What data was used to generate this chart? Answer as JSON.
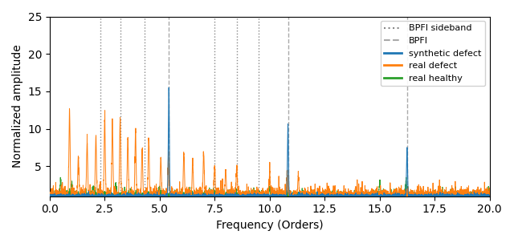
{
  "title": "",
  "xlabel": "Frequency (Orders)",
  "ylabel": "Normalized amplitude",
  "xlim": [
    0,
    20
  ],
  "ylim": [
    1,
    25
  ],
  "yticks": [
    5,
    10,
    15,
    20,
    25
  ],
  "xticks": [
    0.0,
    2.5,
    5.0,
    7.5,
    10.0,
    12.5,
    15.0,
    17.5,
    20.0
  ],
  "bpfi": 5.415,
  "bpfi_dashed": [
    5.415,
    10.83,
    16.245
  ],
  "bpfi_sideband_dotted": [
    2.3,
    3.2,
    4.3,
    7.5,
    8.5,
    9.5
  ],
  "synthetic_color": "#1f77b4",
  "real_defect_color": "#ff7f0e",
  "real_healthy_color": "#2ca02c",
  "vline_dotted_color": "#888888",
  "vline_dashed_color": "#aaaaaa",
  "seed": 42,
  "figsize": [
    6.4,
    3.03
  ],
  "dpi": 100,
  "syn_peak_freqs": [
    5.415,
    10.83,
    16.245
  ],
  "syn_peak_amps": [
    14.5,
    9.5,
    6.5
  ],
  "real_def_peak_freqs": [
    0.9,
    1.3,
    1.7,
    2.1,
    2.5,
    2.85,
    3.2,
    3.55,
    3.9,
    4.2,
    4.5,
    5.05,
    5.4,
    6.1,
    6.5,
    7.0,
    7.5,
    8.0,
    8.5,
    10.0,
    10.8,
    11.3
  ],
  "real_def_peak_amps": [
    11.5,
    5.0,
    7.0,
    8.0,
    10.0,
    9.5,
    10.0,
    7.5,
    8.5,
    6.0,
    7.5,
    5.0,
    5.5,
    5.5,
    4.5,
    5.5,
    3.8,
    3.5,
    3.5,
    3.0,
    3.0,
    2.5
  ],
  "real_hlt_peak_freqs": [
    0.5,
    1.0,
    2.0,
    3.0,
    5.0,
    10.0,
    15.0,
    16.2
  ],
  "real_hlt_peak_amps": [
    2.0,
    1.5,
    1.0,
    1.5,
    1.0,
    1.0,
    1.5,
    2.0
  ]
}
